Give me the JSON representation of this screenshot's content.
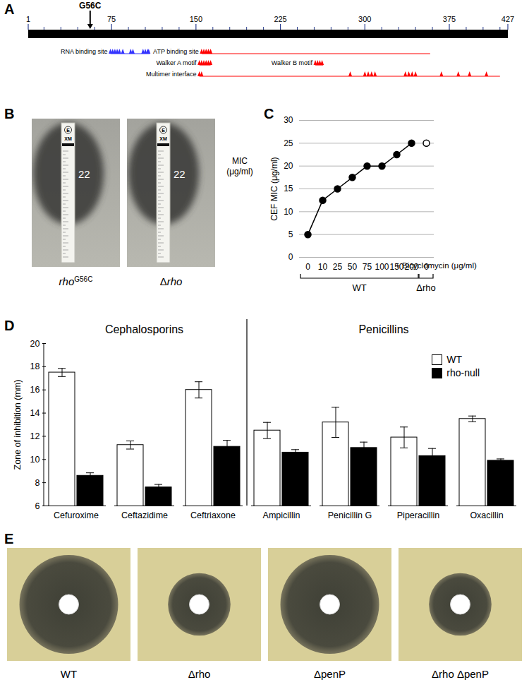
{
  "panel_labels": [
    "A",
    "B",
    "C",
    "D",
    "E"
  ],
  "diagram": {
    "xlim": [
      1,
      427
    ],
    "ticks": [
      1,
      75,
      150,
      225,
      300,
      375,
      427
    ],
    "minor_ticks": [
      15,
      30,
      45,
      60,
      90,
      105,
      120,
      135,
      165,
      180,
      195,
      210,
      240,
      255,
      270,
      285,
      315,
      330,
      345,
      360,
      390,
      405,
      420
    ],
    "mutation": {
      "label": "G56C",
      "position": 56
    },
    "tracks": [
      [
        {
          "label": "RNA binding site",
          "color": "#3333ff",
          "start": 74,
          "end": 109,
          "sites": [
            74,
            76,
            78,
            80,
            82,
            85,
            92,
            94,
            103,
            105,
            107,
            108
          ]
        },
        {
          "label": "ATP binding site",
          "color": "#ff0000",
          "start": 155,
          "end": 358,
          "sites": [
            155,
            157,
            159,
            161,
            163
          ]
        }
      ],
      [
        {
          "label": "Walker A motif",
          "color": "#ff0000",
          "start": 153,
          "end": 163,
          "sites": [
            153,
            155,
            157,
            159,
            161,
            163
          ]
        },
        {
          "label": "Walker B motif",
          "color": "#ff0000",
          "start": 256,
          "end": 263,
          "sites": [
            256,
            258,
            260,
            262
          ]
        }
      ],
      [
        {
          "label": "Multimer interface",
          "color": "#ff0000",
          "start": 153,
          "end": 420,
          "sites": [
            153,
            155,
            287,
            300,
            303,
            306,
            309,
            336,
            339,
            342,
            345,
            368,
            383,
            393,
            408
          ]
        }
      ]
    ]
  },
  "etest": {
    "strip_logo": "E",
    "strip_label": "XM",
    "unit_label": [
      "MIC",
      "(μg/ml)"
    ],
    "strains": [
      {
        "gene": "rho",
        "sup": "G56C",
        "mic": 22
      },
      {
        "prefix": "Δ",
        "gene": "rho",
        "mic": 22
      }
    ]
  },
  "chart_data": [
    {
      "type": "line",
      "ylabel": "CEF MIC (μg/ml)",
      "xlabel": "+ Bicyclomycin (μg/ml)",
      "categories": [
        "0",
        "10",
        "25",
        "50",
        "75",
        "100",
        "150",
        "200",
        "0"
      ],
      "series": [
        {
          "name": "WT",
          "color": "#000000",
          "marker": "circle",
          "values": [
            5,
            12.5,
            15,
            17.5,
            20,
            20,
            22.5,
            25,
            null
          ]
        },
        {
          "name": "Δrho",
          "color": "#000000",
          "marker": "circle-open",
          "values": [
            null,
            null,
            null,
            null,
            null,
            null,
            null,
            null,
            25
          ]
        }
      ],
      "ylim": [
        0,
        30
      ],
      "yticks": [
        0,
        5,
        10,
        15,
        20,
        25,
        30
      ],
      "grid": true
    },
    {
      "type": "bar",
      "ylabel": "Zone of inhibition (mm)",
      "categories": [
        "Cefuroxime",
        "Ceftazidime",
        "Ceftriaxone",
        "Ampicillin",
        "Penicillin G",
        "Piperacillin",
        "Oxacillin"
      ],
      "category_groups": [
        {
          "label": "Cephalosporins",
          "categories": [
            "Cefuroxime",
            "Ceftazidime",
            "Ceftriaxone"
          ]
        },
        {
          "label": "Penicillins",
          "categories": [
            "Ampicillin",
            "Penicillin G",
            "Piperacillin",
            "Oxacillin"
          ]
        }
      ],
      "series": [
        {
          "name": "WT",
          "color": "#ffffff",
          "values": [
            17.5,
            11.25,
            16.0,
            12.5,
            13.2,
            11.9,
            13.5
          ],
          "errors": [
            0.35,
            0.35,
            0.7,
            0.7,
            1.3,
            0.9,
            0.25
          ]
        },
        {
          "name": "rho-null",
          "color": "#000000",
          "values": [
            8.6,
            7.6,
            11.1,
            10.6,
            11.0,
            10.3,
            9.9
          ],
          "errors": [
            0.25,
            0.25,
            0.55,
            0.25,
            0.5,
            0.65,
            0.15
          ]
        }
      ],
      "ylim": [
        6,
        20
      ],
      "yticks": [
        6,
        8,
        10,
        12,
        14,
        16,
        18,
        20
      ],
      "legend": "top-right"
    }
  ],
  "disk_assay": {
    "strains": [
      {
        "label": "WT",
        "inhibition_zone_mm": 30
      },
      {
        "label": "Δrho",
        "inhibition_zone_mm": 19
      },
      {
        "label": "ΔpenP",
        "inhibition_zone_mm": 30
      },
      {
        "label": "Δrho ΔpenP",
        "inhibition_zone_mm": 19
      }
    ]
  }
}
